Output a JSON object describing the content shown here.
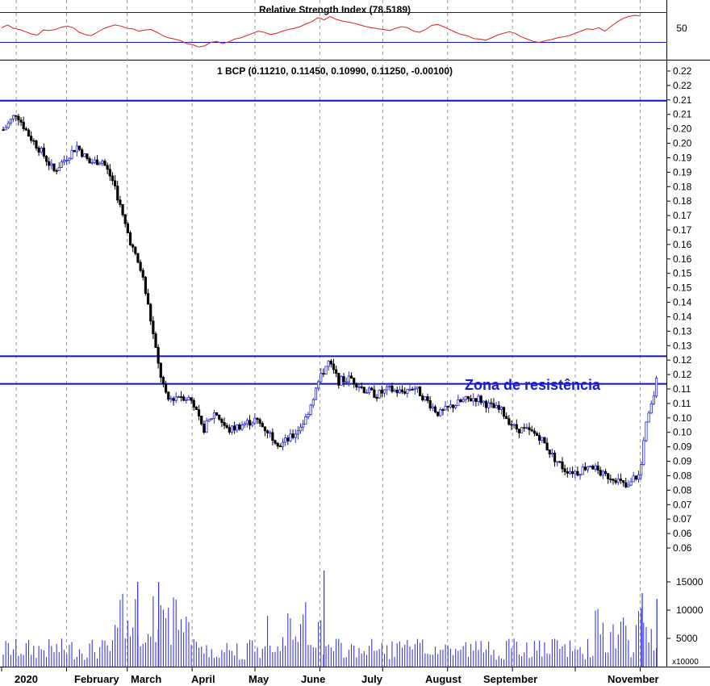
{
  "rsi": {
    "title": "Relative Strength Index (78.5189)",
    "tick_label": "50",
    "levels": [
      70,
      30
    ],
    "values": [
      58,
      63,
      57,
      55,
      51,
      47,
      45,
      54,
      53,
      55,
      59,
      61,
      58,
      50,
      46,
      44,
      50,
      56,
      60,
      63,
      61,
      57,
      56,
      52,
      54,
      55,
      50,
      44,
      40,
      38,
      35,
      30,
      28,
      24,
      26,
      32,
      34,
      30,
      33,
      38,
      40,
      44,
      48,
      52,
      50,
      46,
      48,
      52,
      55,
      57,
      60,
      65,
      69,
      76,
      72,
      78,
      73,
      70,
      68,
      66,
      63,
      60,
      58,
      56,
      55,
      53,
      57,
      60,
      58,
      52,
      50,
      55,
      62,
      64,
      60,
      55,
      50,
      46,
      44,
      39,
      38,
      36,
      40,
      45,
      48,
      51,
      48,
      42,
      38,
      34,
      32,
      35,
      37,
      40,
      42,
      44,
      48,
      52,
      56,
      55,
      58,
      52,
      60,
      68,
      74,
      78,
      80,
      79
    ]
  },
  "price_panel": {
    "title": "1 BCP (0.11210, 0.11450, 0.10990, 0.11250, -0.00100)",
    "annotation": "Zona de resistência"
  },
  "chart_data": [
    {
      "type": "line",
      "title": "Relative Strength Index (78.5189)",
      "ylim": [
        0,
        100
      ],
      "reference_lines": [
        70,
        30
      ]
    },
    {
      "type": "candlestick",
      "title": "1 BCP (0.11210, 0.11450, 0.10990, 0.11250, -0.00100)",
      "ylim": [
        0.05,
        0.225
      ],
      "y_ticks": [
        "0.22",
        "0.22",
        "0.21",
        "0.21",
        "0.20",
        "0.20",
        "0.19",
        "0.19",
        "0.18",
        "0.18",
        "0.17",
        "0.17",
        "0.16",
        "0.16",
        "0.15",
        "0.15",
        "0.14",
        "0.14",
        "0.13",
        "0.13",
        "0.12",
        "0.12",
        "0.11",
        "0.11",
        "0.10",
        "0.10",
        "0.09",
        "0.09",
        "0.08",
        "0.08",
        "0.07",
        "0.07",
        "0.06",
        "0.06"
      ],
      "horizontal_lines": [
        0.2125,
        0.12,
        0.11
      ],
      "annotation": "Zona de resistência",
      "close_path": [
        [
          "2020-01-02",
          0.202
        ],
        [
          "2020-01-08",
          0.208
        ],
        [
          "2020-01-14",
          0.2
        ],
        [
          "2020-01-20",
          0.194
        ],
        [
          "2020-01-26",
          0.187
        ],
        [
          "2020-02-01",
          0.192
        ],
        [
          "2020-02-06",
          0.196
        ],
        [
          "2020-02-12",
          0.19
        ],
        [
          "2020-02-18",
          0.191
        ],
        [
          "2020-02-24",
          0.182
        ],
        [
          "2020-02-28",
          0.17
        ],
        [
          "2020-03-04",
          0.158
        ],
        [
          "2020-03-08",
          0.15
        ],
        [
          "2020-03-12",
          0.134
        ],
        [
          "2020-03-16",
          0.116
        ],
        [
          "2020-03-20",
          0.104
        ],
        [
          "2020-03-26",
          0.106
        ],
        [
          "2020-04-01",
          0.104
        ],
        [
          "2020-04-06",
          0.093
        ],
        [
          "2020-04-12",
          0.1
        ],
        [
          "2020-04-18",
          0.093
        ],
        [
          "2020-04-24",
          0.095
        ],
        [
          "2020-05-01",
          0.097
        ],
        [
          "2020-05-07",
          0.093
        ],
        [
          "2020-05-13",
          0.088
        ],
        [
          "2020-05-19",
          0.091
        ],
        [
          "2020-05-25",
          0.097
        ],
        [
          "2020-06-01",
          0.112
        ],
        [
          "2020-06-05",
          0.118
        ],
        [
          "2020-06-10",
          0.111
        ],
        [
          "2020-06-16",
          0.112
        ],
        [
          "2020-06-22",
          0.108
        ],
        [
          "2020-06-28",
          0.106
        ],
        [
          "2020-07-04",
          0.108
        ],
        [
          "2020-07-10",
          0.107
        ],
        [
          "2020-07-16",
          0.109
        ],
        [
          "2020-07-22",
          0.104
        ],
        [
          "2020-07-28",
          0.099
        ],
        [
          "2020-08-03",
          0.102
        ],
        [
          "2020-08-09",
          0.104
        ],
        [
          "2020-08-15",
          0.105
        ],
        [
          "2020-08-21",
          0.102
        ],
        [
          "2020-08-27",
          0.1
        ],
        [
          "2020-09-02",
          0.094
        ],
        [
          "2020-09-08",
          0.093
        ],
        [
          "2020-09-14",
          0.091
        ],
        [
          "2020-09-20",
          0.084
        ],
        [
          "2020-09-26",
          0.079
        ],
        [
          "2020-10-02",
          0.078
        ],
        [
          "2020-10-08",
          0.081
        ],
        [
          "2020-10-14",
          0.077
        ],
        [
          "2020-10-20",
          0.076
        ],
        [
          "2020-10-26",
          0.072
        ],
        [
          "2020-10-29",
          0.076
        ],
        [
          "2020-11-01",
          0.077
        ],
        [
          "2020-11-03",
          0.093
        ],
        [
          "2020-11-05",
          0.098
        ],
        [
          "2020-11-07",
          0.104
        ],
        [
          "2020-11-09",
          0.112
        ]
      ]
    },
    {
      "type": "bar",
      "title": "",
      "ylim": [
        0,
        18000
      ],
      "y_ticks": [
        "15000",
        "10000",
        "5000"
      ],
      "unit_label": "x10000",
      "spikes": [
        [
          "2020-03-06",
          15000
        ],
        [
          "2020-03-16",
          15000
        ],
        [
          "2020-06-03",
          17000
        ],
        [
          "2020-11-02",
          13000
        ],
        [
          "2020-11-09",
          12000
        ]
      ]
    }
  ],
  "x_axis": {
    "months": [
      "2020",
      "February",
      "March",
      "April",
      "May",
      "June",
      "July",
      "August",
      "September",
      "November"
    ]
  },
  "colors": {
    "rsi_line": "#e02020",
    "guide_line": "#1010c8",
    "candle_down": "#000000",
    "candle_up": "#2a2ad8",
    "volume_bar": "#3a3ae0",
    "annotation": "#1a1ad6",
    "grid": "#9a9a9a"
  }
}
